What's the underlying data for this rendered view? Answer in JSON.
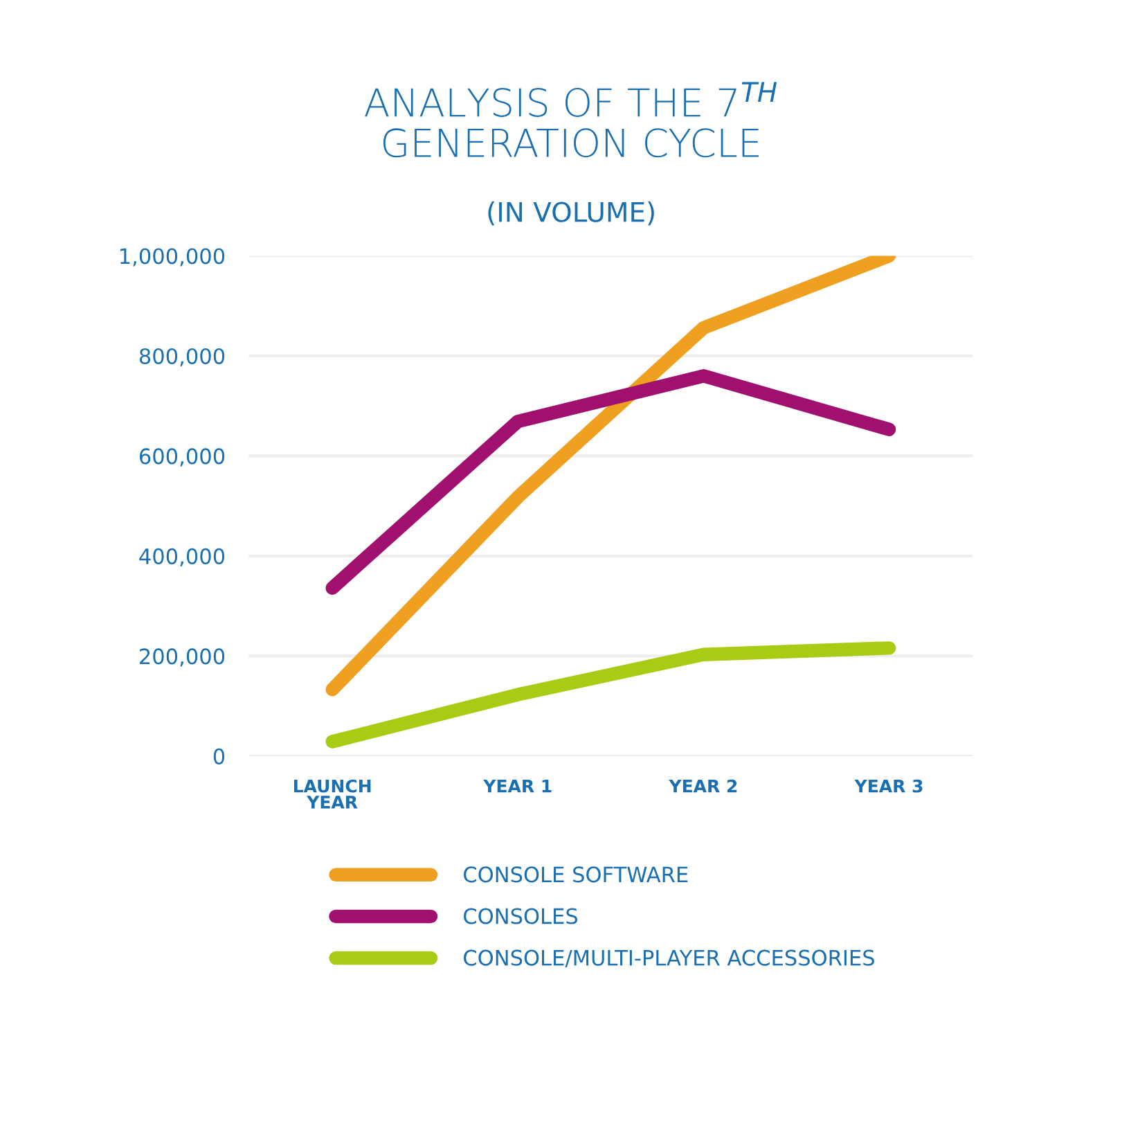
{
  "chart_data": {
    "type": "line",
    "title": "ANALYSIS OF THE 7$^{TH}$\nGENERATION CYCLE",
    "subtitle": "(IN VOLUME)",
    "categories": [
      "LAUNCH\nYEAR",
      "YEAR 1",
      "YEAR 2",
      "YEAR 3"
    ],
    "series": [
      {
        "name": "CONSOLE SOFTWARE",
        "color": "#f0a020",
        "values": [
          133000,
          518000,
          856000,
          1000000
        ]
      },
      {
        "name": "CONSOLES",
        "color": "#a0106e",
        "values": [
          336000,
          669000,
          760000,
          653000
        ]
      },
      {
        "name": "CONSOLE/MULTI-PLAYER ACCESSORIES",
        "color": "#a8cc14",
        "values": [
          29000,
          123000,
          203000,
          216000
        ]
      }
    ],
    "ylim": [
      0,
      1000000
    ],
    "yticks": [
      {
        "value": 0,
        "label": "0"
      },
      {
        "value": 200000,
        "label": "200,000"
      },
      {
        "value": 400000,
        "label": "400,000"
      },
      {
        "value": 600000,
        "label": "600,000"
      },
      {
        "value": 800000,
        "label": "800,000"
      },
      {
        "value": 1000000,
        "label": "1,000,000"
      }
    ],
    "grid": "y",
    "legend": "bottom",
    "marker": "none",
    "line_style": "solid"
  }
}
